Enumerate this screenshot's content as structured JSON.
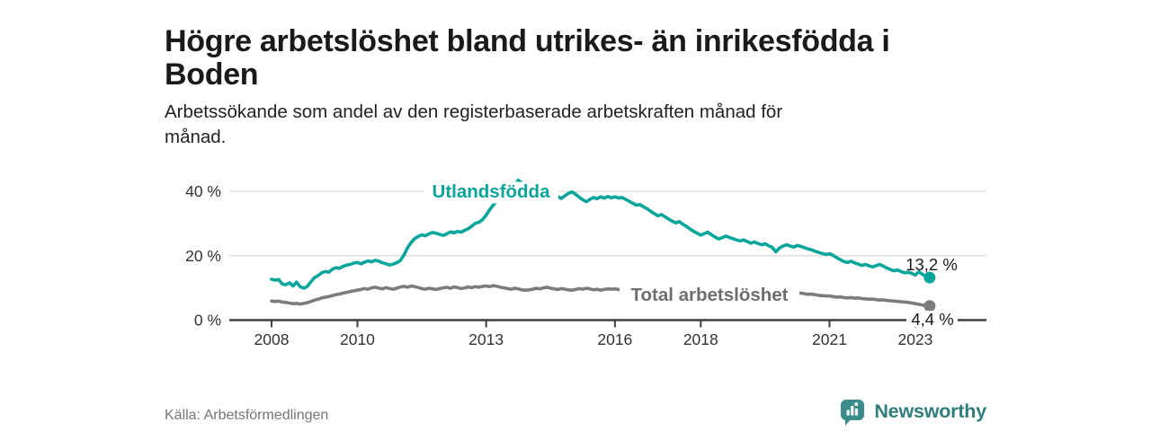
{
  "footer": {
    "brand": "Newsworthy"
  },
  "colors": {
    "foreign_series": "#0aa69b",
    "total_series": "#7c7c7c",
    "total_label": "#6e6e6e",
    "axis": "#3f3f3f",
    "grid": "#dbdbdb",
    "end_label_text": "#1a1a1a",
    "logo_bubble": "#3a8d89",
    "brand_text": "#2e7e7b"
  },
  "chart_data": {
    "type": "line",
    "title": "Högre arbetslöshet bland utrikes- än inrikesfödda i Boden",
    "subtitle": "Arbetssökande som andel av den registerbaserade arbetskraften månad för månad.",
    "source": "Källa: Arbetsförmedlingen",
    "x_unit": "month",
    "x_start_year": 2008,
    "x_end_label_values": [
      "13,2 %",
      "4,4 %"
    ],
    "x_ticks": [
      "2008",
      "2010",
      "2013",
      "2016",
      "2018",
      "2021",
      "2023"
    ],
    "y_ticks": [
      {
        "value": 0,
        "label": "0 %"
      },
      {
        "value": 20,
        "label": "20 %"
      },
      {
        "value": 40,
        "label": "40 %"
      }
    ],
    "ylim": [
      0,
      45
    ],
    "grid": "horizontal",
    "legend_position": "inline-labels",
    "series": [
      {
        "name": "Utlandsfödda",
        "color": "#0aa69b",
        "label_color": "#0aa69b",
        "end_label": "13,2 %",
        "end_value": 13.2,
        "values": [
          12.7,
          12.4,
          12.6,
          11.2,
          11.0,
          11.6,
          10.6,
          11.8,
          10.4,
          9.9,
          10.5,
          11.9,
          13.2,
          13.8,
          14.7,
          15.1,
          14.9,
          15.8,
          16.3,
          16.1,
          16.7,
          17.1,
          17.3,
          17.7,
          17.9,
          17.5,
          18.0,
          18.4,
          18.1,
          18.6,
          18.3,
          17.8,
          17.5,
          17.1,
          17.4,
          17.8,
          18.5,
          20.2,
          22.4,
          24.1,
          25.3,
          26.0,
          26.5,
          26.2,
          26.8,
          27.2,
          27.0,
          26.6,
          26.3,
          26.8,
          27.4,
          27.1,
          27.6,
          27.3,
          27.9,
          28.4,
          29.2,
          30.1,
          30.4,
          31.2,
          32.6,
          34.3,
          35.8,
          36.9,
          37.4,
          38.2,
          39.0,
          40.3,
          41.8,
          43.5,
          42.6,
          41.4,
          41.0,
          40.4,
          40.8,
          40.1,
          39.6,
          40.2,
          39.8,
          39.2,
          38.4,
          37.8,
          38.6,
          39.4,
          39.8,
          39.1,
          38.2,
          37.4,
          36.8,
          37.5,
          38.1,
          37.7,
          38.3,
          37.9,
          38.4,
          38.0,
          38.3,
          37.9,
          38.1,
          37.5,
          36.9,
          36.3,
          35.7,
          35.9,
          35.2,
          34.6,
          33.8,
          33.1,
          32.4,
          32.8,
          32.1,
          31.4,
          30.7,
          30.2,
          30.6,
          29.8,
          29.1,
          28.3,
          27.6,
          27.0,
          26.4,
          26.9,
          27.3,
          26.5,
          25.8,
          25.2,
          25.6,
          26.1,
          25.7,
          25.3,
          24.9,
          24.6,
          24.9,
          24.4,
          23.9,
          24.3,
          23.8,
          23.4,
          23.7,
          23.1,
          22.6,
          21.2,
          22.4,
          23.0,
          23.4,
          23.0,
          22.7,
          23.2,
          22.9,
          22.5,
          22.1,
          21.8,
          21.4,
          21.0,
          20.7,
          20.4,
          20.6,
          20.1,
          19.4,
          18.8,
          18.2,
          17.9,
          18.3,
          17.8,
          17.4,
          17.0,
          17.3,
          16.9,
          16.5,
          16.9,
          17.3,
          16.8,
          16.2,
          15.7,
          15.3,
          15.6,
          15.1,
          14.7,
          14.9,
          14.5,
          14.0,
          15.0,
          14.2,
          13.6,
          13.2
        ]
      },
      {
        "name": "Total arbetslöshet",
        "color": "#7c7c7c",
        "label_color": "#6e6e6e",
        "end_label": "4,4 %",
        "end_value": 4.4,
        "values": [
          5.9,
          5.8,
          5.9,
          5.6,
          5.5,
          5.3,
          5.1,
          5.2,
          5.0,
          5.2,
          5.4,
          5.8,
          6.2,
          6.5,
          6.9,
          7.1,
          7.3,
          7.6,
          7.9,
          8.1,
          8.4,
          8.6,
          8.9,
          9.1,
          9.3,
          9.5,
          9.8,
          9.6,
          10.0,
          10.2,
          9.9,
          9.7,
          10.1,
          9.8,
          9.6,
          9.9,
          10.3,
          10.5,
          10.2,
          10.6,
          10.4,
          10.1,
          9.8,
          9.6,
          9.9,
          9.7,
          9.5,
          9.8,
          10.0,
          10.2,
          9.9,
          10.3,
          10.1,
          9.8,
          10.0,
          10.3,
          10.1,
          10.4,
          10.2,
          10.5,
          10.6,
          10.4,
          10.7,
          10.5,
          10.2,
          10.0,
          9.8,
          9.6,
          9.9,
          9.7,
          9.4,
          9.3,
          9.4,
          9.6,
          9.9,
          9.7,
          10.0,
          10.2,
          9.9,
          9.7,
          9.5,
          9.8,
          9.6,
          9.4,
          9.3,
          9.5,
          9.8,
          9.6,
          9.9,
          9.7,
          9.4,
          9.6,
          9.3,
          9.5,
          9.7,
          9.6,
          9.7,
          9.5,
          9.3,
          9.6,
          9.4,
          9.2,
          9.4,
          9.6,
          9.3,
          9.1,
          9.3,
          9.5,
          9.7,
          9.5,
          9.2,
          9.4,
          9.1,
          8.9,
          9.1,
          8.8,
          8.6,
          8.8,
          8.5,
          8.7,
          8.7,
          8.9,
          8.6,
          8.8,
          8.5,
          8.3,
          8.5,
          8.2,
          8.4,
          8.1,
          8.3,
          8.0,
          8.2,
          8.0,
          7.8,
          8.0,
          7.7,
          7.9,
          7.6,
          7.8,
          7.5,
          7.7,
          7.9,
          7.8,
          7.8,
          7.6,
          7.9,
          8.3,
          8.4,
          8.2,
          8.0,
          8.1,
          7.9,
          7.7,
          7.6,
          7.5,
          7.5,
          7.3,
          7.1,
          7.2,
          7.0,
          6.9,
          7.0,
          6.8,
          6.9,
          6.7,
          6.6,
          6.5,
          6.5,
          6.4,
          6.2,
          6.3,
          6.1,
          6.0,
          5.9,
          5.8,
          5.7,
          5.6,
          5.5,
          5.3,
          5.1,
          4.9,
          4.7,
          4.5,
          4.4
        ]
      }
    ]
  }
}
